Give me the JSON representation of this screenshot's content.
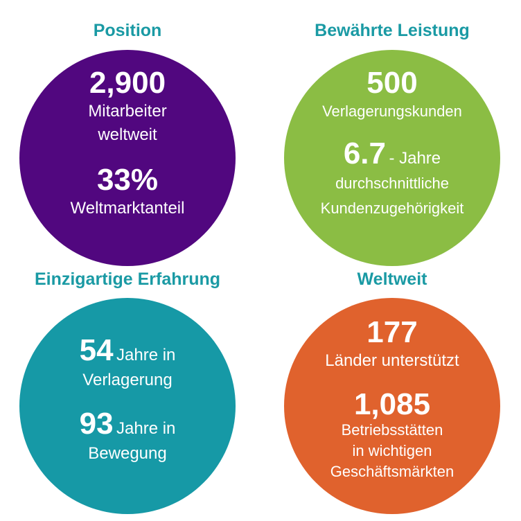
{
  "colors": {
    "heading": "#1a9aa4",
    "position_circle": "#51077f",
    "performance_circle": "#8bbd44",
    "experience_circle": "#1699a6",
    "worldwide_circle": "#e0622d",
    "text_on_circle": "#ffffff"
  },
  "position": {
    "heading": "Position",
    "stat1_value": "2,900",
    "stat1_line1": "Mitarbeiter",
    "stat1_line2": "weltweit",
    "stat2_value": "33%",
    "stat2_line1": "Weltmarktanteil"
  },
  "performance": {
    "heading": "Bewährte Leistung",
    "stat1_value": "500",
    "stat1_line1": "Verlagerungskunden",
    "stat2_value": "6.7",
    "stat2_suffix": "- Jahre",
    "stat2_line1": "durchschnittliche",
    "stat2_line2": "Kundenzugehörigkeit"
  },
  "experience": {
    "heading": "Einzigartige Erfahrung",
    "stat1_value": "54",
    "stat1_suffix": "Jahre in",
    "stat1_line1": "Verlagerung",
    "stat2_value": "93",
    "stat2_suffix": "Jahre in",
    "stat2_line1": "Bewegung"
  },
  "worldwide": {
    "heading": "Weltweit",
    "stat1_value": "177",
    "stat1_line1": "Länder unterstützt",
    "stat2_value": "1,085",
    "stat2_line1": "Betriebsstätten",
    "stat2_line2": "in wichtigen",
    "stat2_line3": "Geschäftsmärkten"
  }
}
